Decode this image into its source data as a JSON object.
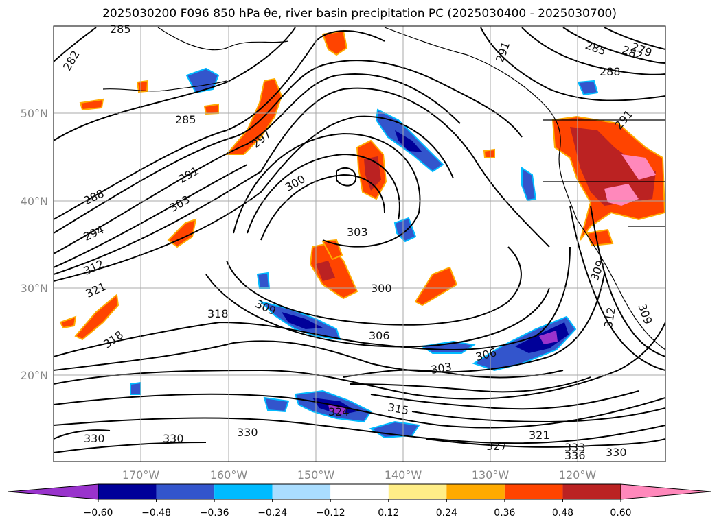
{
  "title": "2025030200 F096 850 hPa θe, river basin precipitation PC (2025030400 - 2025030700)",
  "map": {
    "lat_labels": [
      "50°N",
      "40°N",
      "30°N",
      "20°N"
    ],
    "lon_labels": [
      "170°W",
      "160°W",
      "150°W",
      "140°W",
      "130°W",
      "120°W"
    ],
    "contour_labels": [
      "285",
      "282",
      "291",
      "279",
      "285",
      "282",
      "288",
      "285",
      "291",
      "297",
      "288",
      "300",
      "291",
      "303",
      "294",
      "303",
      "312",
      "321",
      "300",
      "309",
      "318",
      "318",
      "306",
      "306",
      "303",
      "315",
      "324",
      "309",
      "312",
      "309",
      "330",
      "330",
      "330",
      "327",
      "321",
      "333",
      "336",
      "330"
    ]
  },
  "colorbar": {
    "ticks": [
      "−0.60",
      "−0.48",
      "−0.36",
      "−0.24",
      "−0.12",
      "0.12",
      "0.24",
      "0.36",
      "0.48",
      "0.60"
    ],
    "colors": [
      "#9933cc",
      "#000099",
      "#3355cc",
      "#00bbff",
      "#aaddff",
      "#ffffff",
      "#ffee88",
      "#ffaa00",
      "#ff4400",
      "#bb2222",
      "#ff88bb"
    ]
  }
}
